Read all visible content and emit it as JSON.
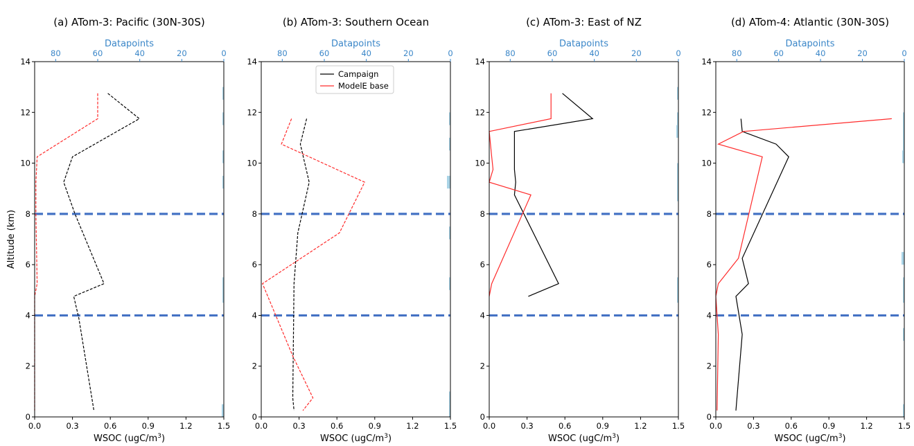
{
  "figure": {
    "ylabel": "Altitude (km)",
    "xlabel_main": "WSOC (ugC/m",
    "xlabel_sup": "3",
    "xlabel_close": ")",
    "top_label": "Datapoints",
    "legend": [
      "Campaign",
      "ModelE base"
    ]
  },
  "colors": {
    "campaign": "#000000",
    "model": "#ff2a2a",
    "ref_line": "#4472c4",
    "datapoints": "#a9d3e6",
    "top_axis": "#3a86c8"
  },
  "chart_data": [
    {
      "type": "line",
      "title": "(a) ATom-3: Pacific (30N-30S)",
      "xlim": [
        0,
        1.5
      ],
      "ylim": [
        0,
        14
      ],
      "xticks": [
        "0.0",
        "0.3",
        "0.6",
        "0.9",
        "1.2",
        "1.5"
      ],
      "yticks": [
        "0",
        "2",
        "4",
        "6",
        "8",
        "10",
        "12",
        "14"
      ],
      "top_xlim": [
        90,
        0
      ],
      "top_ticks": [
        "80",
        "60",
        "40",
        "20",
        "0"
      ],
      "hlines": [
        4,
        8
      ],
      "series": [
        {
          "name": "Campaign",
          "style": "dashed",
          "x": [
            0.58,
            0.83,
            0.3,
            0.23,
            0.32,
            0.55,
            0.31,
            0.35,
            0.47
          ],
          "y": [
            12.75,
            11.75,
            10.25,
            9.25,
            8.0,
            5.25,
            4.75,
            3.9,
            0.25
          ]
        },
        {
          "name": "ModelE base",
          "style": "dashed",
          "x": [
            0.5,
            0.5,
            0.02,
            0.01,
            0.01,
            0.02,
            0.0,
            0.0
          ],
          "y": [
            12.75,
            11.75,
            10.25,
            9.25,
            8.0,
            5.25,
            4.75,
            0.25
          ]
        }
      ],
      "datapoint_bars": [
        [
          12.75,
          0.5,
          2
        ],
        [
          11.75,
          0.5,
          2
        ],
        [
          10.25,
          0.5,
          2
        ],
        [
          9.25,
          0.5,
          2
        ],
        [
          5.0,
          1.0,
          2
        ],
        [
          0.25,
          0.5,
          3
        ]
      ]
    },
    {
      "type": "line",
      "title": "(b) ATom-3: Southern Ocean",
      "xlim": [
        0,
        1.5
      ],
      "ylim": [
        0,
        14
      ],
      "xticks": [
        "0.0",
        "0.3",
        "0.6",
        "0.9",
        "1.2",
        "1.5"
      ],
      "yticks": [
        "0",
        "2",
        "4",
        "6",
        "8",
        "10",
        "12",
        "14"
      ],
      "top_xlim": [
        90,
        0
      ],
      "top_ticks": [
        "80",
        "60",
        "40",
        "20",
        "0"
      ],
      "hlines": [
        4,
        8
      ],
      "series": [
        {
          "name": "Campaign",
          "style": "dashed",
          "x": [
            0.36,
            0.31,
            0.38,
            0.29,
            0.26,
            0.25,
            0.26
          ],
          "y": [
            11.75,
            10.75,
            9.25,
            7.25,
            5.25,
            0.75,
            0.25
          ]
        },
        {
          "name": "ModelE base",
          "style": "dashed",
          "x": [
            0.24,
            0.16,
            0.82,
            0.62,
            0.01,
            0.25,
            0.41,
            0.33
          ],
          "y": [
            11.75,
            10.75,
            9.25,
            7.25,
            5.25,
            2.4,
            0.75,
            0.25
          ]
        }
      ],
      "datapoint_bars": [
        [
          11.75,
          0.5,
          2
        ],
        [
          10.75,
          0.5,
          2
        ],
        [
          9.25,
          0.5,
          5
        ],
        [
          7.25,
          0.5,
          2
        ],
        [
          5.25,
          0.5,
          2
        ],
        [
          0.75,
          0.5,
          2
        ],
        [
          0.25,
          0.5,
          2
        ]
      ]
    },
    {
      "type": "line",
      "title": "(c) ATom-3: East of NZ",
      "xlim": [
        0,
        1.5
      ],
      "ylim": [
        0,
        14
      ],
      "xticks": [
        "0.0",
        "0.3",
        "0.6",
        "0.9",
        "1.2",
        "1.5"
      ],
      "yticks": [
        "0",
        "2",
        "4",
        "6",
        "8",
        "10",
        "12",
        "14"
      ],
      "top_xlim": [
        90,
        0
      ],
      "top_ticks": [
        "80",
        "60",
        "40",
        "20",
        "0"
      ],
      "hlines": [
        4,
        8
      ],
      "series": [
        {
          "name": "Campaign",
          "style": "mixed",
          "x": [
            0.58,
            0.82,
            0.2,
            0.2,
            0.2,
            0.21,
            0.2,
            0.55,
            0.31
          ],
          "y": [
            12.75,
            11.75,
            11.25,
            10.25,
            9.75,
            9.25,
            8.75,
            5.25,
            4.75
          ]
        },
        {
          "name": "ModelE base",
          "style": "mixed",
          "x": [
            0.49,
            0.49,
            0.0,
            0.02,
            0.03,
            0.0,
            0.33,
            0.02,
            0.0
          ],
          "y": [
            12.75,
            11.75,
            11.25,
            10.25,
            9.75,
            9.25,
            8.75,
            5.25,
            4.75
          ]
        }
      ],
      "datapoint_bars": [
        [
          12.75,
          0.5,
          2
        ],
        [
          11.75,
          0.5,
          2
        ],
        [
          11.25,
          0.5,
          3
        ],
        [
          9.25,
          1.5,
          2
        ],
        [
          5.0,
          1.0,
          2
        ]
      ]
    },
    {
      "type": "line",
      "title": "(d) ATom-4: Atlantic (30N-30S)",
      "xlim": [
        0,
        1.5
      ],
      "ylim": [
        0,
        14
      ],
      "xticks": [
        "0.0",
        "0.3",
        "0.6",
        "0.9",
        "1.2",
        "1.5"
      ],
      "yticks": [
        "0",
        "2",
        "4",
        "6",
        "8",
        "10",
        "12",
        "14"
      ],
      "top_xlim": [
        90,
        0
      ],
      "top_ticks": [
        "80",
        "60",
        "40",
        "20",
        "0"
      ],
      "hlines": [
        4,
        8
      ],
      "series": [
        {
          "name": "Campaign",
          "style": "mixed",
          "x": [
            0.2,
            0.21,
            0.48,
            0.58,
            0.21,
            0.26,
            0.16,
            0.21,
            0.16
          ],
          "y": [
            11.75,
            11.25,
            10.75,
            10.25,
            6.25,
            5.25,
            4.75,
            3.25,
            0.25
          ]
        },
        {
          "name": "ModelE base",
          "style": "mixed",
          "x": [
            1.4,
            0.22,
            0.02,
            0.37,
            0.18,
            0.02,
            0.0,
            0.02,
            0.01
          ],
          "y": [
            11.75,
            11.25,
            10.75,
            10.25,
            6.25,
            5.25,
            4.75,
            3.25,
            0.25
          ]
        }
      ],
      "datapoint_bars": [
        [
          11.25,
          1.5,
          2
        ],
        [
          10.25,
          0.5,
          3
        ],
        [
          6.25,
          0.5,
          4
        ],
        [
          5.0,
          1.0,
          2
        ],
        [
          3.25,
          0.5,
          2
        ],
        [
          0.25,
          0.5,
          2
        ]
      ]
    }
  ]
}
